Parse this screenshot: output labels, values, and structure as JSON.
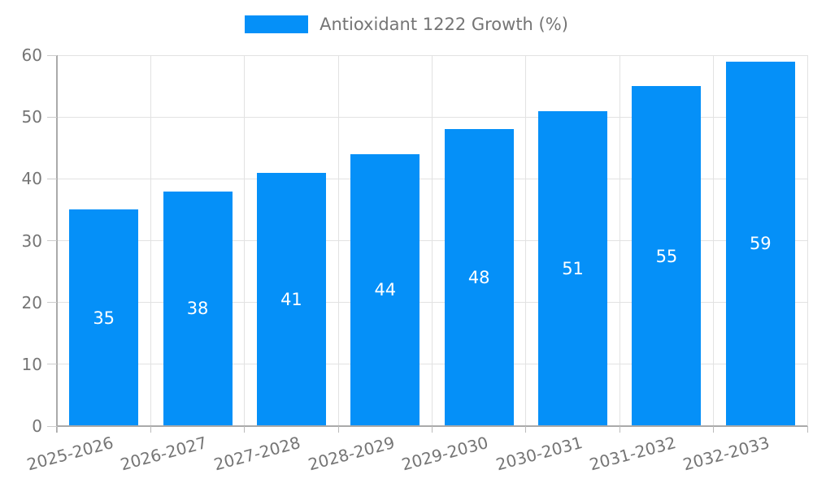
{
  "chart_data": {
    "type": "bar",
    "title": "",
    "legend": "Antioxidant 1222 Growth (%)",
    "legend_position": "top-center",
    "categories": [
      "2025-2026",
      "2026-2027",
      "2027-2028",
      "2028-2029",
      "2029-2030",
      "2030-2031",
      "2031-2032",
      "2032-2033"
    ],
    "values": [
      35,
      38,
      41,
      44,
      48,
      51,
      55,
      59
    ],
    "value_labels": [
      "35",
      "38",
      "41",
      "44",
      "48",
      "51",
      "55",
      "59"
    ],
    "xlabel": "",
    "ylabel": "",
    "ylim": [
      0,
      60
    ],
    "yticks": [
      0,
      10,
      20,
      30,
      40,
      50,
      60
    ],
    "grid": true,
    "colors": {
      "bar": "#0590f8",
      "value_label": "#ffffff",
      "axis_text": "#757575",
      "gridline": "#e2e2e2",
      "axis_line": "#aaaaaa",
      "background": "#ffffff"
    }
  }
}
